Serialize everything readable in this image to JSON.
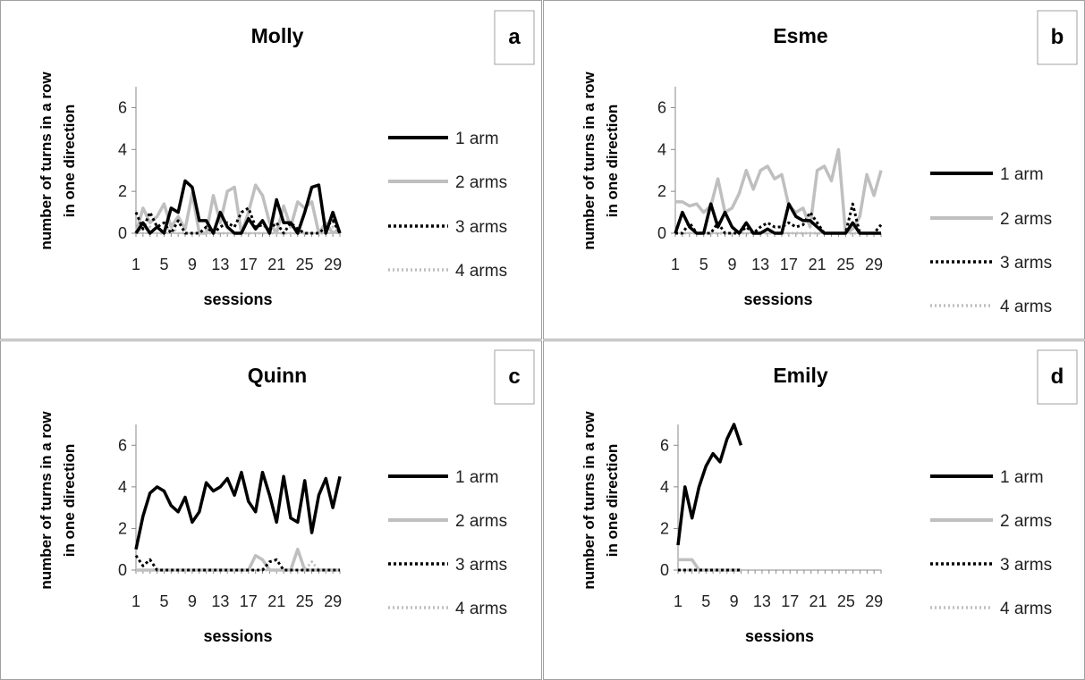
{
  "chart_data": [
    {
      "type": "line",
      "panel_label": "a",
      "title": "Molly",
      "xlabel": "sessions",
      "ylabel": [
        "number of turns in a row",
        "in one direction"
      ],
      "ylim": [
        0,
        7
      ],
      "yticks": [
        0,
        2,
        4,
        6
      ],
      "xlim": [
        1,
        30
      ],
      "xticks": [
        1,
        5,
        9,
        13,
        17,
        21,
        25,
        29
      ],
      "grid": false,
      "legend_position": "right",
      "series": [
        {
          "name": "1 arm",
          "color": "#000000",
          "style": "solid",
          "x": [
            1,
            2,
            3,
            4,
            5,
            6,
            7,
            8,
            9,
            10,
            11,
            12,
            13,
            14,
            15,
            16,
            17,
            18,
            19,
            20,
            21,
            22,
            23,
            24,
            25,
            26,
            27,
            28,
            29,
            30
          ],
          "y": [
            0,
            0.5,
            0,
            0.3,
            0,
            1.2,
            1,
            2.5,
            2.2,
            0.6,
            0.6,
            0,
            1,
            0.3,
            0,
            0,
            0.7,
            0.2,
            0.6,
            0,
            1.6,
            0.5,
            0.5,
            0,
            1,
            2.2,
            2.3,
            0,
            1,
            0
          ]
        },
        {
          "name": "2 arms",
          "color": "#bfbfbf",
          "style": "solid",
          "x": [
            1,
            2,
            3,
            4,
            5,
            6,
            7,
            8,
            9,
            10,
            11,
            12,
            13,
            14,
            15,
            16,
            17,
            18,
            19,
            20,
            21,
            22,
            23,
            24,
            25,
            26,
            27,
            28,
            29,
            30
          ],
          "y": [
            0,
            1.2,
            0.5,
            0.8,
            1.4,
            0.3,
            0.8,
            0.2,
            1.9,
            0,
            0,
            1.8,
            0.5,
            2,
            2.2,
            0,
            1,
            2.3,
            1.8,
            0.5,
            0,
            1.3,
            0.3,
            1.5,
            1.2,
            1.5,
            0,
            0.5,
            0,
            0.2
          ]
        },
        {
          "name": "3 arms",
          "color": "#000000",
          "style": "dotted",
          "x": [
            1,
            2,
            3,
            4,
            5,
            6,
            7,
            8,
            9,
            10,
            11,
            12,
            13,
            14,
            15,
            16,
            17,
            18,
            19,
            20,
            21,
            22,
            23,
            24,
            25,
            26,
            27,
            28,
            29,
            30
          ],
          "y": [
            1,
            0.2,
            1,
            0.3,
            0.5,
            0,
            0.6,
            0,
            0,
            0,
            0.3,
            0,
            0.3,
            0.5,
            0.3,
            1,
            1.2,
            0.3,
            0.4,
            0.2,
            0.5,
            0,
            0.5,
            0.2,
            0,
            0,
            0,
            0.3,
            0.6,
            0
          ]
        },
        {
          "name": "4 arms",
          "color": "#bfbfbf",
          "style": "dotted",
          "x": [
            1,
            2,
            3,
            4,
            5,
            6,
            7,
            8,
            9,
            10,
            11,
            12,
            13,
            14,
            15,
            16,
            17,
            18,
            19,
            20,
            21,
            22,
            23,
            24,
            25,
            26,
            27,
            28,
            29,
            30
          ],
          "y": [
            0.3,
            0,
            0.3,
            0,
            0,
            0.3,
            0,
            0,
            0,
            0,
            0,
            0,
            0,
            0,
            0,
            0,
            0,
            0,
            0,
            0,
            0,
            0,
            0,
            0,
            0,
            0,
            0,
            0,
            0.3,
            0
          ]
        }
      ]
    },
    {
      "type": "line",
      "panel_label": "b",
      "title": "Esme",
      "xlabel": "sessions",
      "ylabel": [
        "number of turns in a row",
        "in one direction"
      ],
      "ylim": [
        0,
        7
      ],
      "yticks": [
        0,
        2,
        4,
        6
      ],
      "xlim": [
        1,
        30
      ],
      "xticks": [
        1,
        5,
        9,
        13,
        17,
        21,
        25,
        29
      ],
      "grid": false,
      "legend_position": "right",
      "series": [
        {
          "name": "1 arm",
          "color": "#000000",
          "style": "solid",
          "x": [
            1,
            2,
            3,
            4,
            5,
            6,
            7,
            8,
            9,
            10,
            11,
            12,
            13,
            14,
            15,
            16,
            17,
            18,
            19,
            20,
            21,
            22,
            23,
            24,
            25,
            26,
            27,
            28,
            29,
            30
          ],
          "y": [
            0,
            1,
            0.3,
            0,
            0,
            1.4,
            0.3,
            1,
            0.3,
            0,
            0.5,
            0,
            0,
            0.2,
            0,
            0,
            1.4,
            0.8,
            0.6,
            0.6,
            0.3,
            0,
            0,
            0,
            0,
            0.5,
            0,
            0,
            0,
            0
          ]
        },
        {
          "name": "2 arms",
          "color": "#bfbfbf",
          "style": "solid",
          "x": [
            1,
            2,
            3,
            4,
            5,
            6,
            7,
            8,
            9,
            10,
            11,
            12,
            13,
            14,
            15,
            16,
            17,
            18,
            19,
            20,
            21,
            22,
            23,
            24,
            25,
            26,
            27,
            28,
            29,
            30
          ],
          "y": [
            1.5,
            1.5,
            1.3,
            1.4,
            1,
            1.3,
            2.6,
            1,
            1.2,
            1.9,
            3,
            2.1,
            3,
            3.2,
            2.6,
            2.8,
            1.3,
            1,
            1.2,
            0.3,
            3,
            3.2,
            2.5,
            4,
            0,
            0.2,
            0.8,
            2.8,
            1.8,
            3
          ]
        },
        {
          "name": "3 arms",
          "color": "#000000",
          "style": "dotted",
          "x": [
            1,
            2,
            3,
            4,
            5,
            6,
            7,
            8,
            9,
            10,
            11,
            12,
            13,
            14,
            15,
            16,
            17,
            18,
            19,
            20,
            21,
            22,
            23,
            24,
            25,
            26,
            27,
            28,
            29,
            30
          ],
          "y": [
            0,
            0,
            0.5,
            0,
            0,
            0,
            0.5,
            0,
            0,
            0,
            0.3,
            0,
            0.3,
            0.5,
            0.3,
            0.3,
            0.5,
            0.3,
            0.4,
            1,
            0.5,
            0,
            0,
            0,
            0,
            1.4,
            0,
            0,
            0,
            0.4
          ]
        },
        {
          "name": "4 arms",
          "color": "#bfbfbf",
          "style": "dotted",
          "x": [
            1,
            2,
            3,
            4,
            5,
            6,
            7,
            8,
            9,
            10,
            11,
            12,
            13,
            14,
            15,
            16,
            17,
            18,
            19,
            20,
            21,
            22,
            23,
            24,
            25,
            26,
            27,
            28,
            29,
            30
          ],
          "y": [
            0,
            0,
            0,
            0,
            0,
            0,
            0,
            0,
            0,
            0,
            0,
            0,
            0,
            0,
            0,
            0,
            0,
            0,
            0,
            0,
            0,
            0,
            0,
            0,
            0,
            0,
            0,
            0,
            0,
            0
          ]
        }
      ]
    },
    {
      "type": "line",
      "panel_label": "c",
      "title": "Quinn",
      "xlabel": "sessions",
      "ylabel": [
        "number of turns in a row",
        "in one direction"
      ],
      "ylim": [
        0,
        7
      ],
      "yticks": [
        0,
        2,
        4,
        6
      ],
      "xlim": [
        1,
        30
      ],
      "xticks": [
        1,
        5,
        9,
        13,
        17,
        21,
        25,
        29
      ],
      "grid": false,
      "legend_position": "right",
      "series": [
        {
          "name": "1 arm",
          "color": "#000000",
          "style": "solid",
          "x": [
            1,
            2,
            3,
            4,
            5,
            6,
            7,
            8,
            9,
            10,
            11,
            12,
            13,
            14,
            15,
            16,
            17,
            18,
            19,
            20,
            21,
            22,
            23,
            24,
            25,
            26,
            27,
            28,
            29,
            30
          ],
          "y": [
            1,
            2.6,
            3.7,
            4,
            3.8,
            3.1,
            2.8,
            3.5,
            2.3,
            2.8,
            4.2,
            3.8,
            4,
            4.4,
            3.6,
            4.7,
            3.3,
            2.8,
            4.7,
            3.6,
            2.3,
            4.5,
            2.5,
            2.3,
            4.3,
            1.8,
            3.6,
            4.4,
            3,
            4.5
          ]
        },
        {
          "name": "2 arms",
          "color": "#bfbfbf",
          "style": "solid",
          "x": [
            1,
            2,
            3,
            4,
            5,
            6,
            7,
            8,
            9,
            10,
            11,
            12,
            13,
            14,
            15,
            16,
            17,
            18,
            19,
            20,
            21,
            22,
            23,
            24,
            25,
            26,
            27,
            28,
            29,
            30
          ],
          "y": [
            0,
            0,
            0,
            0,
            0,
            0,
            0,
            0,
            0,
            0,
            0,
            0,
            0,
            0,
            0,
            0,
            0,
            0.7,
            0.5,
            0,
            0,
            0,
            0,
            1,
            0,
            0,
            0,
            0,
            0,
            0
          ]
        },
        {
          "name": "3 arms",
          "color": "#000000",
          "style": "dotted",
          "x": [
            1,
            2,
            3,
            4,
            5,
            6,
            7,
            8,
            9,
            10,
            11,
            12,
            13,
            14,
            15,
            16,
            17,
            18,
            19,
            20,
            21,
            22,
            23,
            24,
            25,
            26,
            27,
            28,
            29,
            30
          ],
          "y": [
            0.7,
            0.2,
            0.5,
            0,
            0,
            0,
            0,
            0,
            0,
            0,
            0,
            0,
            0,
            0,
            0,
            0,
            0,
            0,
            0,
            0.4,
            0.5,
            0,
            0,
            0,
            0,
            0,
            0,
            0,
            0,
            0
          ]
        },
        {
          "name": "4 arms",
          "color": "#bfbfbf",
          "style": "dotted",
          "x": [
            1,
            2,
            3,
            4,
            5,
            6,
            7,
            8,
            9,
            10,
            11,
            12,
            13,
            14,
            15,
            16,
            17,
            18,
            19,
            20,
            21,
            22,
            23,
            24,
            25,
            26,
            27,
            28,
            29,
            30
          ],
          "y": [
            0,
            0,
            0,
            0,
            0,
            0,
            0,
            0,
            0,
            0,
            0,
            0,
            0,
            0,
            0,
            0,
            0,
            0,
            0,
            0,
            0,
            0,
            0,
            0,
            0,
            0.4,
            0,
            0,
            0,
            0
          ]
        }
      ]
    },
    {
      "type": "line",
      "panel_label": "d",
      "title": "Emily",
      "xlabel": "sessions",
      "ylabel": [
        "number of turns in a row",
        "in one direction"
      ],
      "ylim": [
        0,
        7
      ],
      "yticks": [
        0,
        2,
        4,
        6
      ],
      "xlim": [
        1,
        30
      ],
      "xticks": [
        1,
        5,
        9,
        13,
        17,
        21,
        25,
        29
      ],
      "grid": false,
      "legend_position": "right",
      "series": [
        {
          "name": "1 arm",
          "color": "#000000",
          "style": "solid",
          "x": [
            1,
            2,
            3,
            4,
            5,
            6,
            7,
            8,
            9,
            10
          ],
          "y": [
            1.2,
            4,
            2.5,
            4,
            5,
            5.6,
            5.2,
            6.3,
            7,
            6
          ]
        },
        {
          "name": "2 arms",
          "color": "#bfbfbf",
          "style": "solid",
          "x": [
            1,
            2,
            3,
            4,
            5,
            6,
            7,
            8,
            9,
            10
          ],
          "y": [
            0.5,
            0.5,
            0.5,
            0,
            0,
            0,
            0,
            0,
            0,
            0
          ]
        },
        {
          "name": "3 arms",
          "color": "#000000",
          "style": "dotted",
          "x": [
            1,
            2,
            3,
            4,
            5,
            6,
            7,
            8,
            9,
            10
          ],
          "y": [
            0,
            0,
            0,
            0,
            0,
            0,
            0,
            0,
            0,
            0
          ]
        },
        {
          "name": "4 arms",
          "color": "#bfbfbf",
          "style": "dotted",
          "x": [
            1,
            2,
            3,
            4,
            5,
            6,
            7,
            8,
            9,
            10
          ],
          "y": [
            0,
            0,
            0,
            0,
            0,
            0,
            0,
            0,
            0,
            0
          ]
        }
      ]
    }
  ]
}
